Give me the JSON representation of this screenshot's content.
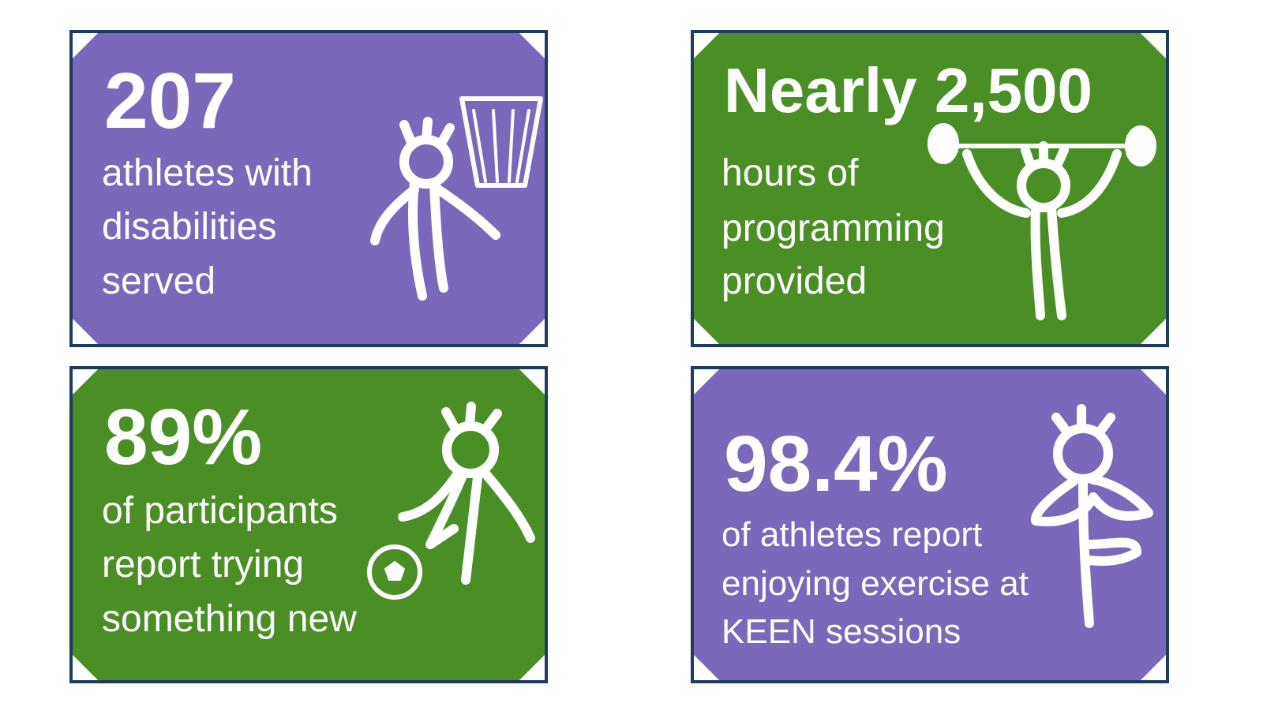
{
  "cards": [
    {
      "headline": "207",
      "lines": [
        "athletes with",
        "disabilities",
        "served"
      ],
      "color": "#7b68bb"
    },
    {
      "headline": "Nearly 2,500",
      "lines": [
        "hours of",
        "programming",
        "provided"
      ],
      "color": "#4a8f26"
    },
    {
      "headline": "89%",
      "lines": [
        "of participants",
        "report trying",
        "something new"
      ],
      "color": "#4a8f26"
    },
    {
      "headline": "98.4%",
      "lines": [
        "of athletes report",
        "enjoying exercise at",
        "KEEN sessions"
      ],
      "color": "#7b68bb"
    }
  ]
}
